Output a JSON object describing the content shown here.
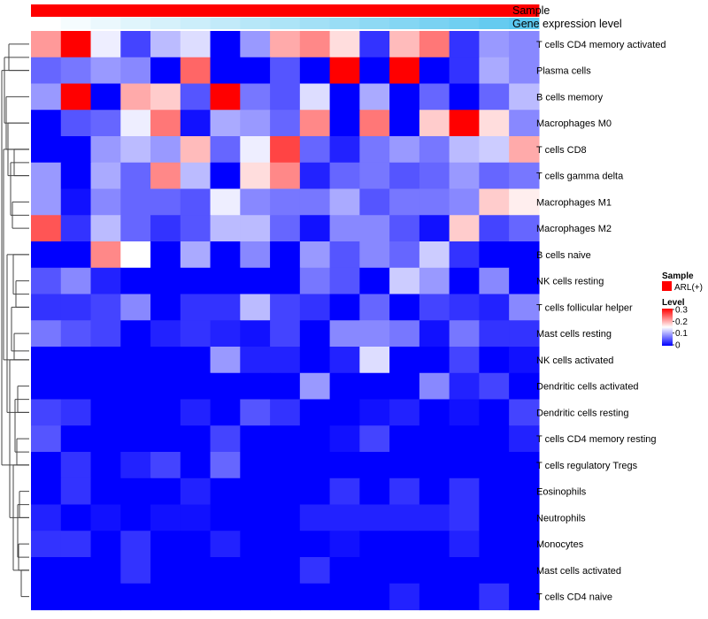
{
  "chart_data": {
    "type": "heatmap",
    "annotations": {
      "sample_label": "Sample",
      "expression_label": "Gene expression level",
      "sample_color": "#ff0000",
      "expression_colors": [
        "#ffffff",
        "#5bc8ef"
      ]
    },
    "legend": {
      "sample_title": "Sample",
      "sample_entry": "ARL(+)",
      "sample_color": "#ff0000",
      "level_title": "Level",
      "ticks": [
        "0.3",
        "0.2",
        "0.1",
        "0"
      ],
      "tick_values": [
        0.3,
        0.2,
        0.1,
        0
      ]
    },
    "color_scale": {
      "min": 0,
      "mid": 0.15,
      "max": 0.3,
      "low": "#0000ff",
      "mid_color": "#ffffff",
      "high": "#ff0000"
    },
    "rows": [
      "T cells CD4 memory activated",
      "Plasma cells",
      "B cells memory",
      "Macrophages M0",
      "T cells CD8",
      "T cells gamma delta",
      "Macrophages M1",
      "Macrophages M2",
      "B cells naive",
      "NK cells resting",
      "T cells follicular helper",
      "Mast cells resting",
      "NK cells activated",
      "Dendritic cells activated",
      "Dendritic cells resting",
      "T cells CD4 memory resting",
      "T cells regulatory  Tregs",
      "Eosinophils",
      "Neutrophils",
      "Monocytes",
      "Mast cells activated",
      "T cells CD4 naive"
    ],
    "values": [
      [
        0.21,
        0.3,
        0.14,
        0.04,
        0.11,
        0.13,
        0.0,
        0.09,
        0.2,
        0.22,
        0.17,
        0.03,
        0.19,
        0.23,
        0.03,
        0.09,
        0.08
      ],
      [
        0.06,
        0.07,
        0.09,
        0.08,
        0.0,
        0.24,
        0.0,
        0.0,
        0.05,
        0.0,
        0.3,
        0.0,
        0.3,
        0.0,
        0.03,
        0.1,
        0.08
      ],
      [
        0.09,
        0.3,
        0.0,
        0.2,
        0.18,
        0.05,
        0.3,
        0.07,
        0.05,
        0.13,
        0.0,
        0.1,
        0.0,
        0.06,
        0.0,
        0.06,
        0.11
      ],
      [
        0.0,
        0.05,
        0.06,
        0.14,
        0.23,
        0.01,
        0.1,
        0.09,
        0.06,
        0.22,
        0.0,
        0.23,
        0.0,
        0.18,
        0.3,
        0.17,
        0.08
      ],
      [
        0.0,
        0.0,
        0.09,
        0.11,
        0.09,
        0.19,
        0.06,
        0.14,
        0.26,
        0.06,
        0.02,
        0.07,
        0.09,
        0.07,
        0.11,
        0.12,
        0.2
      ],
      [
        0.09,
        0.0,
        0.1,
        0.06,
        0.22,
        0.11,
        0.0,
        0.17,
        0.22,
        0.02,
        0.06,
        0.07,
        0.05,
        0.06,
        0.09,
        0.06,
        0.07
      ],
      [
        0.09,
        0.01,
        0.08,
        0.06,
        0.06,
        0.05,
        0.14,
        0.08,
        0.07,
        0.07,
        0.1,
        0.05,
        0.07,
        0.07,
        0.08,
        0.18,
        0.16
      ],
      [
        0.25,
        0.03,
        0.11,
        0.06,
        0.03,
        0.05,
        0.11,
        0.11,
        0.06,
        0.01,
        0.08,
        0.08,
        0.05,
        0.01,
        0.18,
        0.04,
        0.06
      ],
      [
        0.0,
        0.0,
        0.22,
        0.15,
        0.0,
        0.1,
        0.0,
        0.08,
        0.0,
        0.09,
        0.05,
        0.08,
        0.06,
        0.12,
        0.03,
        0.0,
        0.0
      ],
      [
        0.05,
        0.08,
        0.02,
        0.0,
        0.0,
        0.0,
        0.0,
        0.0,
        0.0,
        0.07,
        0.05,
        0.0,
        0.12,
        0.09,
        0.0,
        0.08,
        0.0
      ],
      [
        0.03,
        0.03,
        0.04,
        0.08,
        0.0,
        0.03,
        0.03,
        0.11,
        0.04,
        0.03,
        0.0,
        0.06,
        0.0,
        0.04,
        0.03,
        0.02,
        0.08
      ],
      [
        0.07,
        0.05,
        0.04,
        0.0,
        0.02,
        0.03,
        0.02,
        0.01,
        0.04,
        0.0,
        0.08,
        0.08,
        0.07,
        0.01,
        0.07,
        0.03,
        0.03
      ],
      [
        0.0,
        0.0,
        0.0,
        0.0,
        0.0,
        0.0,
        0.09,
        0.02,
        0.02,
        0.0,
        0.02,
        0.13,
        0.0,
        0.0,
        0.04,
        0.0,
        0.01
      ],
      [
        0.0,
        0.0,
        0.0,
        0.0,
        0.0,
        0.0,
        0.0,
        0.0,
        0.0,
        0.09,
        0.0,
        0.0,
        0.0,
        0.08,
        0.02,
        0.04,
        0.0
      ],
      [
        0.04,
        0.03,
        0.0,
        0.0,
        0.0,
        0.02,
        0.0,
        0.05,
        0.03,
        0.0,
        0.0,
        0.01,
        0.02,
        0.0,
        0.01,
        0.0,
        0.04
      ],
      [
        0.05,
        0.0,
        0.0,
        0.0,
        0.0,
        0.0,
        0.04,
        0.0,
        0.0,
        0.0,
        0.01,
        0.04,
        0.0,
        0.0,
        0.0,
        0.0,
        0.02
      ],
      [
        0.0,
        0.03,
        0.0,
        0.02,
        0.04,
        0.0,
        0.06,
        0.0,
        0.0,
        0.0,
        0.0,
        0.0,
        0.0,
        0.0,
        0.0,
        0.0,
        0.0
      ],
      [
        0.0,
        0.03,
        0.0,
        0.0,
        0.0,
        0.02,
        0.0,
        0.0,
        0.0,
        0.0,
        0.03,
        0.0,
        0.03,
        0.0,
        0.03,
        0.0,
        0.0
      ],
      [
        0.02,
        0.0,
        0.01,
        0.0,
        0.01,
        0.01,
        0.0,
        0.0,
        0.0,
        0.02,
        0.02,
        0.02,
        0.02,
        0.02,
        0.03,
        0.0,
        0.0
      ],
      [
        0.03,
        0.03,
        0.0,
        0.03,
        0.0,
        0.0,
        0.02,
        0.0,
        0.0,
        0.0,
        0.01,
        0.0,
        0.0,
        0.0,
        0.02,
        0.0,
        0.0
      ],
      [
        0.0,
        0.0,
        0.0,
        0.03,
        0.0,
        0.0,
        0.0,
        0.0,
        0.0,
        0.03,
        0.0,
        0.0,
        0.0,
        0.0,
        0.0,
        0.0,
        0.0
      ],
      [
        0.0,
        0.0,
        0.0,
        0.0,
        0.0,
        0.0,
        0.0,
        0.0,
        0.0,
        0.0,
        0.0,
        0.0,
        0.02,
        0.0,
        0.0,
        0.03,
        0.0
      ]
    ]
  }
}
